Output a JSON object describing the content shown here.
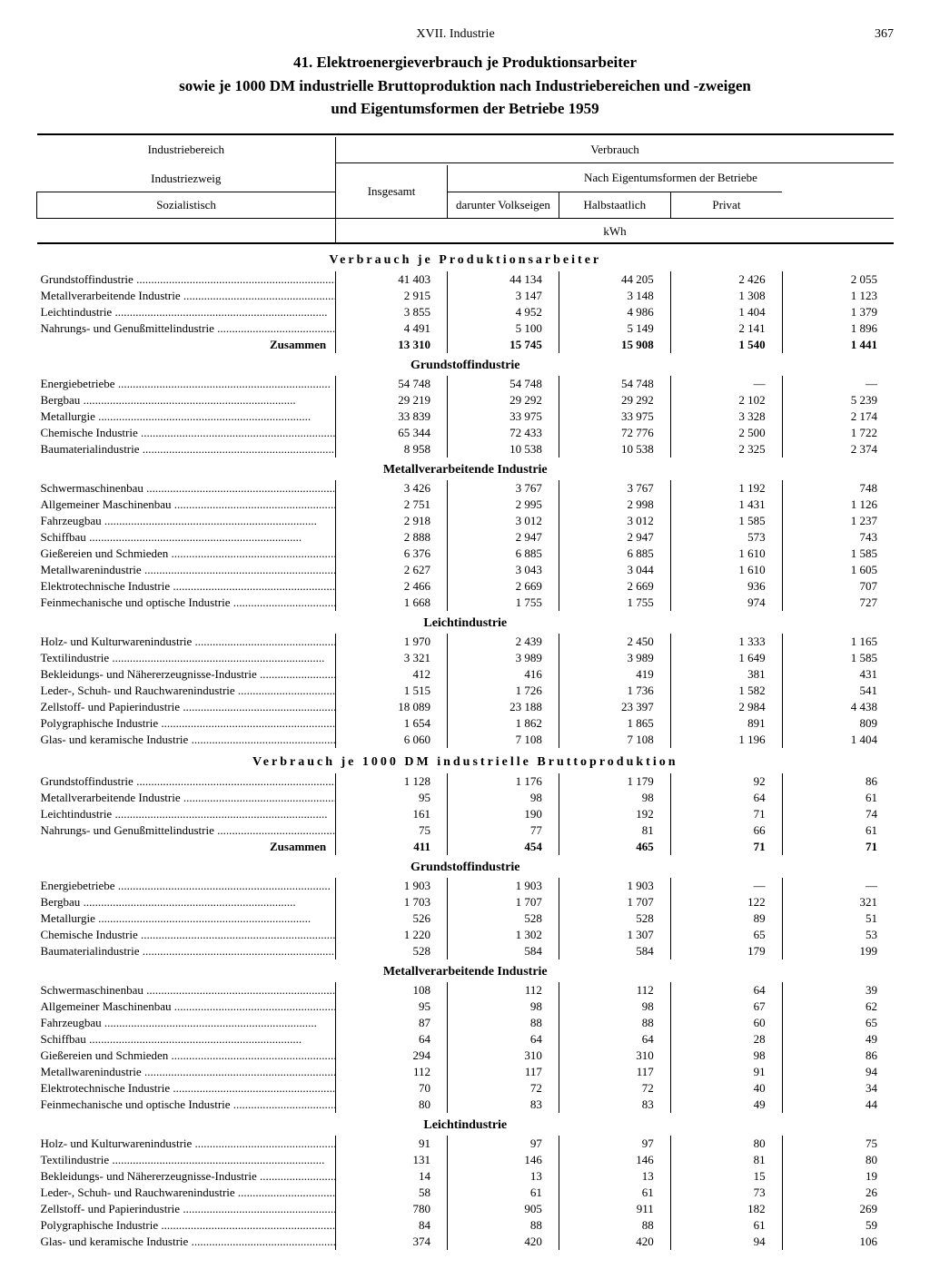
{
  "page": {
    "chapter": "XVII. Industrie",
    "number": "367"
  },
  "title": [
    "41. Elektroenergieverbrauch je Produktionsarbeiter",
    "sowie je 1000 DM industrielle Bruttoproduktion nach Industriebereichen und -zweigen",
    "und Eigentumsformen der Betriebe 1959"
  ],
  "headers": {
    "verbrauch": "Verbrauch",
    "nach": "Nach Eigentumsformen der Betriebe",
    "bereich": "Industriebereich",
    "zweig": "Industriezweig",
    "insgesamt": "Insgesamt",
    "soz": "Sozialistisch",
    "volks": "darunter Volkseigen",
    "halb": "Halbstaatlich",
    "privat": "Privat",
    "unit": "kWh"
  },
  "sectionA": "Verbrauch je Produktionsarbeiter",
  "sectionB": "Verbrauch je 1000 DM industrielle Bruttoproduktion",
  "sub_grund": "Grundstoffindustrie",
  "sub_metall": "Metallverarbeitende Industrie",
  "sub_leicht": "Leichtindustrie",
  "zusammen": "Zusammen",
  "A_top": [
    [
      "Grundstoffindustrie",
      "41 403",
      "44 134",
      "44 205",
      "2 426",
      "2 055"
    ],
    [
      "Metallverarbeitende Industrie",
      "2 915",
      "3 147",
      "3 148",
      "1 308",
      "1 123"
    ],
    [
      "Leichtindustrie",
      "3 855",
      "4 952",
      "4 986",
      "1 404",
      "1 379"
    ],
    [
      "Nahrungs- und Genußmittelindustrie",
      "4 491",
      "5 100",
      "5 149",
      "2 141",
      "1 896"
    ]
  ],
  "A_sum": [
    "13 310",
    "15 745",
    "15 908",
    "1 540",
    "1 441"
  ],
  "A_grund": [
    [
      "Energiebetriebe",
      "54 748",
      "54 748",
      "54 748",
      "—",
      "—"
    ],
    [
      "Bergbau",
      "29 219",
      "29 292",
      "29 292",
      "2 102",
      "5 239"
    ],
    [
      "Metallurgie",
      "33 839",
      "33 975",
      "33 975",
      "3 328",
      "2 174"
    ],
    [
      "Chemische Industrie",
      "65 344",
      "72 433",
      "72 776",
      "2 500",
      "1 722"
    ],
    [
      "Baumaterialindustrie",
      "8 958",
      "10 538",
      "10 538",
      "2 325",
      "2 374"
    ]
  ],
  "A_metall": [
    [
      "Schwermaschinenbau",
      "3 426",
      "3 767",
      "3 767",
      "1 192",
      "748"
    ],
    [
      "Allgemeiner Maschinenbau",
      "2 751",
      "2 995",
      "2 998",
      "1 431",
      "1 126"
    ],
    [
      "Fahrzeugbau",
      "2 918",
      "3 012",
      "3 012",
      "1 585",
      "1 237"
    ],
    [
      "Schiffbau",
      "2 888",
      "2 947",
      "2 947",
      "573",
      "743"
    ],
    [
      "Gießereien und Schmieden",
      "6 376",
      "6 885",
      "6 885",
      "1 610",
      "1 585"
    ],
    [
      "Metallwarenindustrie",
      "2 627",
      "3 043",
      "3 044",
      "1 610",
      "1 605"
    ],
    [
      "Elektrotechnische Industrie",
      "2 466",
      "2 669",
      "2 669",
      "936",
      "707"
    ],
    [
      "Feinmechanische und optische Industrie",
      "1 668",
      "1 755",
      "1 755",
      "974",
      "727"
    ]
  ],
  "A_leicht": [
    [
      "Holz- und Kulturwarenindustrie",
      "1 970",
      "2 439",
      "2 450",
      "1 333",
      "1 165"
    ],
    [
      "Textilindustrie",
      "3 321",
      "3 989",
      "3 989",
      "1 649",
      "1 585"
    ],
    [
      "Bekleidungs- und Nähererzeugnisse-Industrie",
      "412",
      "416",
      "419",
      "381",
      "431"
    ],
    [
      "Leder-, Schuh- und Rauchwarenindustrie",
      "1 515",
      "1 726",
      "1 736",
      "1 582",
      "541"
    ],
    [
      "Zellstoff- und Papierindustrie",
      "18 089",
      "23 188",
      "23 397",
      "2 984",
      "4 438"
    ],
    [
      "Polygraphische Industrie",
      "1 654",
      "1 862",
      "1 865",
      "891",
      "809"
    ],
    [
      "Glas- und keramische Industrie",
      "6 060",
      "7 108",
      "7 108",
      "1 196",
      "1 404"
    ]
  ],
  "B_top": [
    [
      "Grundstoffindustrie",
      "1 128",
      "1 176",
      "1 179",
      "92",
      "86"
    ],
    [
      "Metallverarbeitende Industrie",
      "95",
      "98",
      "98",
      "64",
      "61"
    ],
    [
      "Leichtindustrie",
      "161",
      "190",
      "192",
      "71",
      "74"
    ],
    [
      "Nahrungs- und Genußmittelindustrie",
      "75",
      "77",
      "81",
      "66",
      "61"
    ]
  ],
  "B_sum": [
    "411",
    "454",
    "465",
    "71",
    "71"
  ],
  "B_grund": [
    [
      "Energiebetriebe",
      "1 903",
      "1 903",
      "1 903",
      "—",
      "—"
    ],
    [
      "Bergbau",
      "1 703",
      "1 707",
      "1 707",
      "122",
      "321"
    ],
    [
      "Metallurgie",
      "526",
      "528",
      "528",
      "89",
      "51"
    ],
    [
      "Chemische Industrie",
      "1 220",
      "1 302",
      "1 307",
      "65",
      "53"
    ],
    [
      "Baumaterialindustrie",
      "528",
      "584",
      "584",
      "179",
      "199"
    ]
  ],
  "B_metall": [
    [
      "Schwermaschinenbau",
      "108",
      "112",
      "112",
      "64",
      "39"
    ],
    [
      "Allgemeiner Maschinenbau",
      "95",
      "98",
      "98",
      "67",
      "62"
    ],
    [
      "Fahrzeugbau",
      "87",
      "88",
      "88",
      "60",
      "65"
    ],
    [
      "Schiffbau",
      "64",
      "64",
      "64",
      "28",
      "49"
    ],
    [
      "Gießereien und Schmieden",
      "294",
      "310",
      "310",
      "98",
      "86"
    ],
    [
      "Metallwarenindustrie",
      "112",
      "117",
      "117",
      "91",
      "94"
    ],
    [
      "Elektrotechnische Industrie",
      "70",
      "72",
      "72",
      "40",
      "34"
    ],
    [
      "Feinmechanische und optische Industrie",
      "80",
      "83",
      "83",
      "49",
      "44"
    ]
  ],
  "B_leicht": [
    [
      "Holz- und Kulturwarenindustrie",
      "91",
      "97",
      "97",
      "80",
      "75"
    ],
    [
      "Textilindustrie",
      "131",
      "146",
      "146",
      "81",
      "80"
    ],
    [
      "Bekleidungs- und Nähererzeugnisse-Industrie",
      "14",
      "13",
      "13",
      "15",
      "19"
    ],
    [
      "Leder-, Schuh- und Rauchwarenindustrie",
      "58",
      "61",
      "61",
      "73",
      "26"
    ],
    [
      "Zellstoff- und Papierindustrie",
      "780",
      "905",
      "911",
      "182",
      "269"
    ],
    [
      "Polygraphische Industrie",
      "84",
      "88",
      "88",
      "61",
      "59"
    ],
    [
      "Glas- und keramische Industrie",
      "374",
      "420",
      "420",
      "94",
      "106"
    ]
  ]
}
